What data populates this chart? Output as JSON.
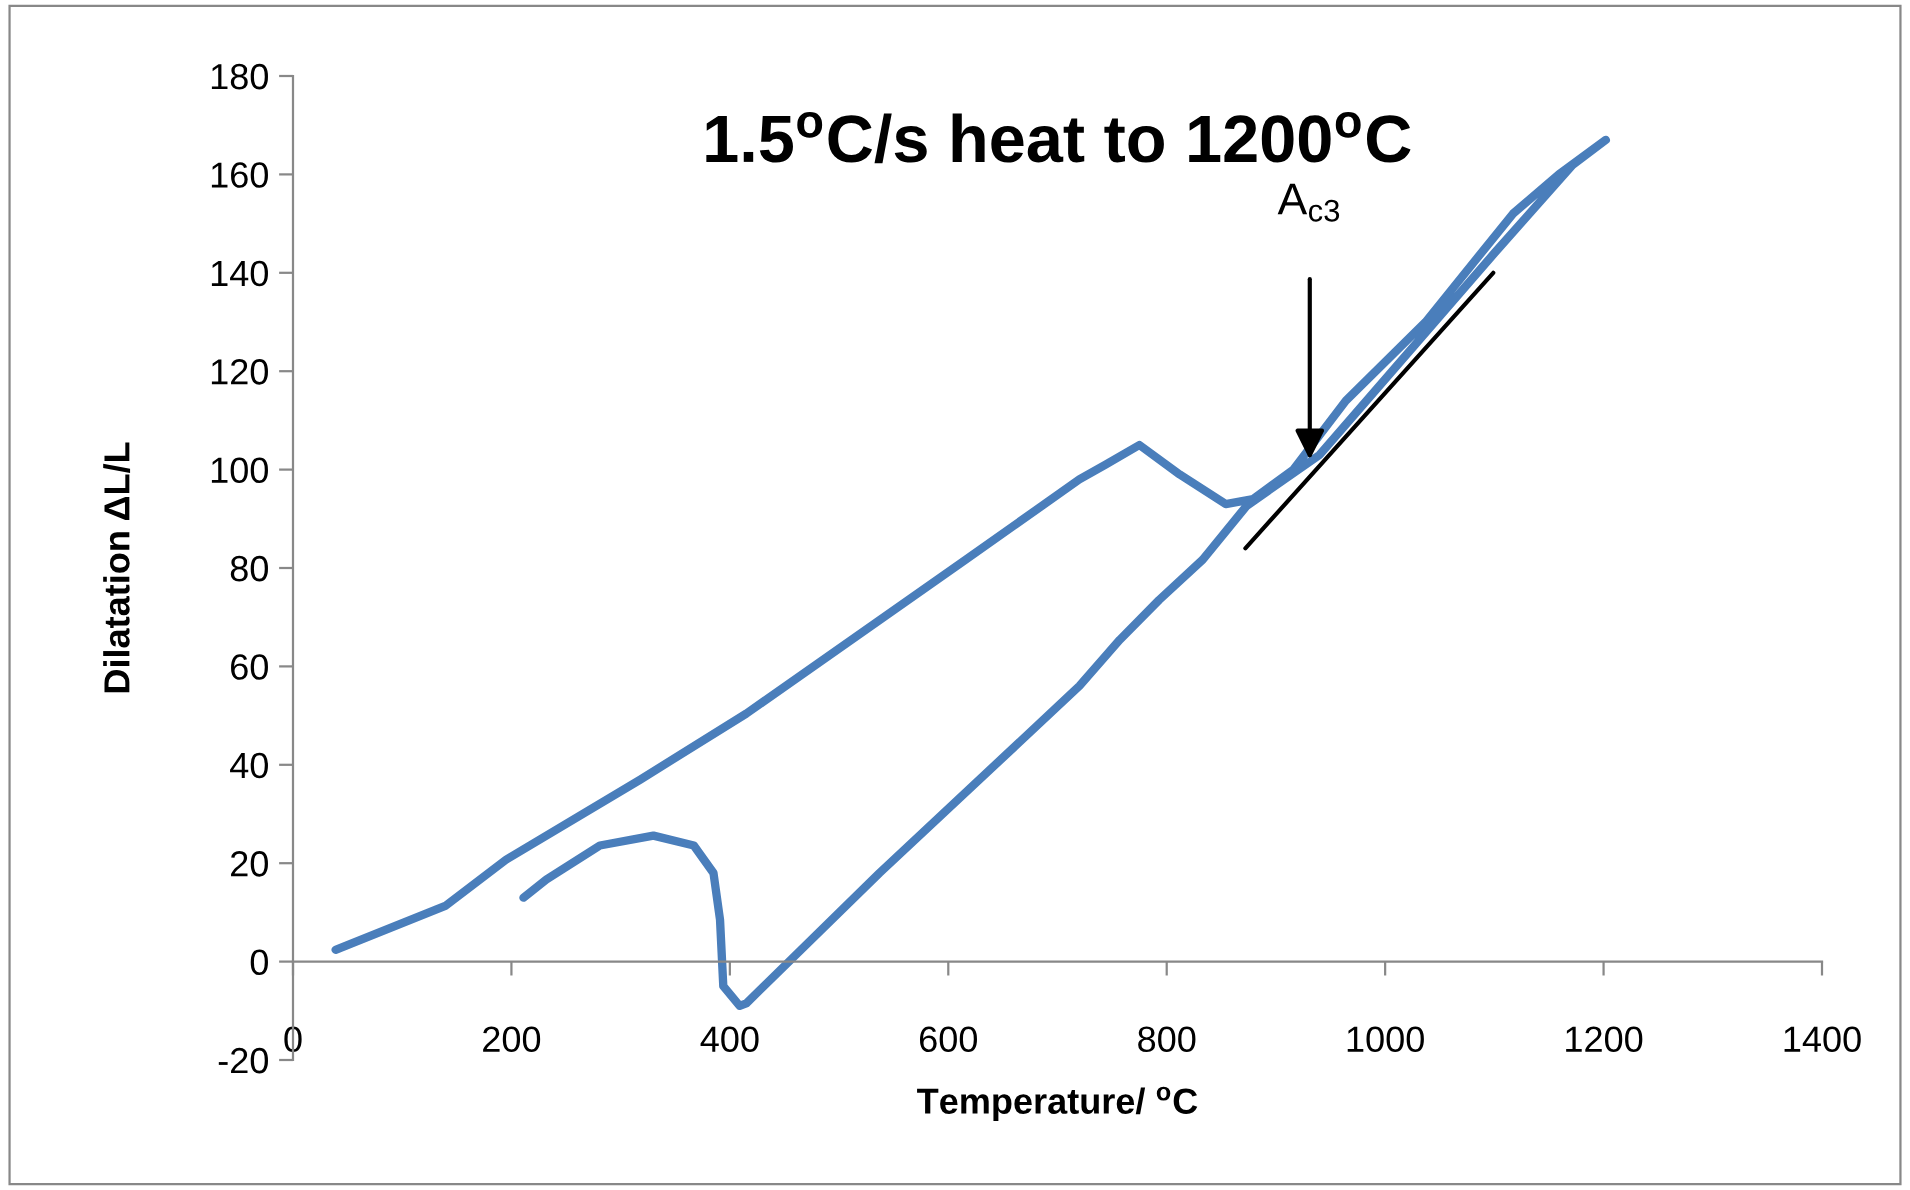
{
  "chart_data": {
    "type": "line",
    "title": "1.5$^{o}$C/s heat to 1200$^{o}$C",
    "xlabel": "Temperature/ $^{o}$C",
    "ylabel": "Dilatation ΔL/L",
    "xlim": [
      0,
      1400
    ],
    "ylim": [
      -20,
      180
    ],
    "xticks": [
      0,
      200,
      400,
      600,
      800,
      1000,
      1200,
      1400
    ],
    "yticks": [
      -20,
      0,
      20,
      40,
      60,
      80,
      100,
      120,
      140,
      160,
      180
    ],
    "grid": false,
    "legend": false,
    "marker": "none",
    "line_style": "solid",
    "series": [
      {
        "color": "#4a7ebb",
        "x": [
          39,
          140,
          195,
          318,
          415,
          616,
          720,
          744,
          775,
          812,
          854,
          879,
          916,
          964,
          1037,
          1117,
          1159,
          1202,
          1172,
          1100,
          1026,
          940,
          873,
          833,
          793,
          757,
          720,
          537,
          415,
          409,
          394,
          391,
          385,
          367,
          330,
          281,
          232,
          211
        ],
        "values": [
          2.4,
          11.4,
          20.7,
          37,
          50.4,
          81.7,
          98,
          101,
          105,
          99,
          93,
          94,
          100,
          114,
          130,
          152,
          160,
          167,
          162,
          144,
          125,
          103,
          92.6,
          81.7,
          73.5,
          65.4,
          56,
          18,
          -8.5,
          -9,
          -5,
          8.5,
          18,
          23.6,
          25.6,
          23.6,
          16.7,
          13
        ]
      },
      {
        "color": "#000000",
        "type": "line",
        "x": [
          872,
          1099
        ],
        "values": [
          84,
          140
        ]
      }
    ],
    "annotations": [
      {
        "text": "A$_{c3}$",
        "x": 931,
        "y": 102
      }
    ]
  }
}
